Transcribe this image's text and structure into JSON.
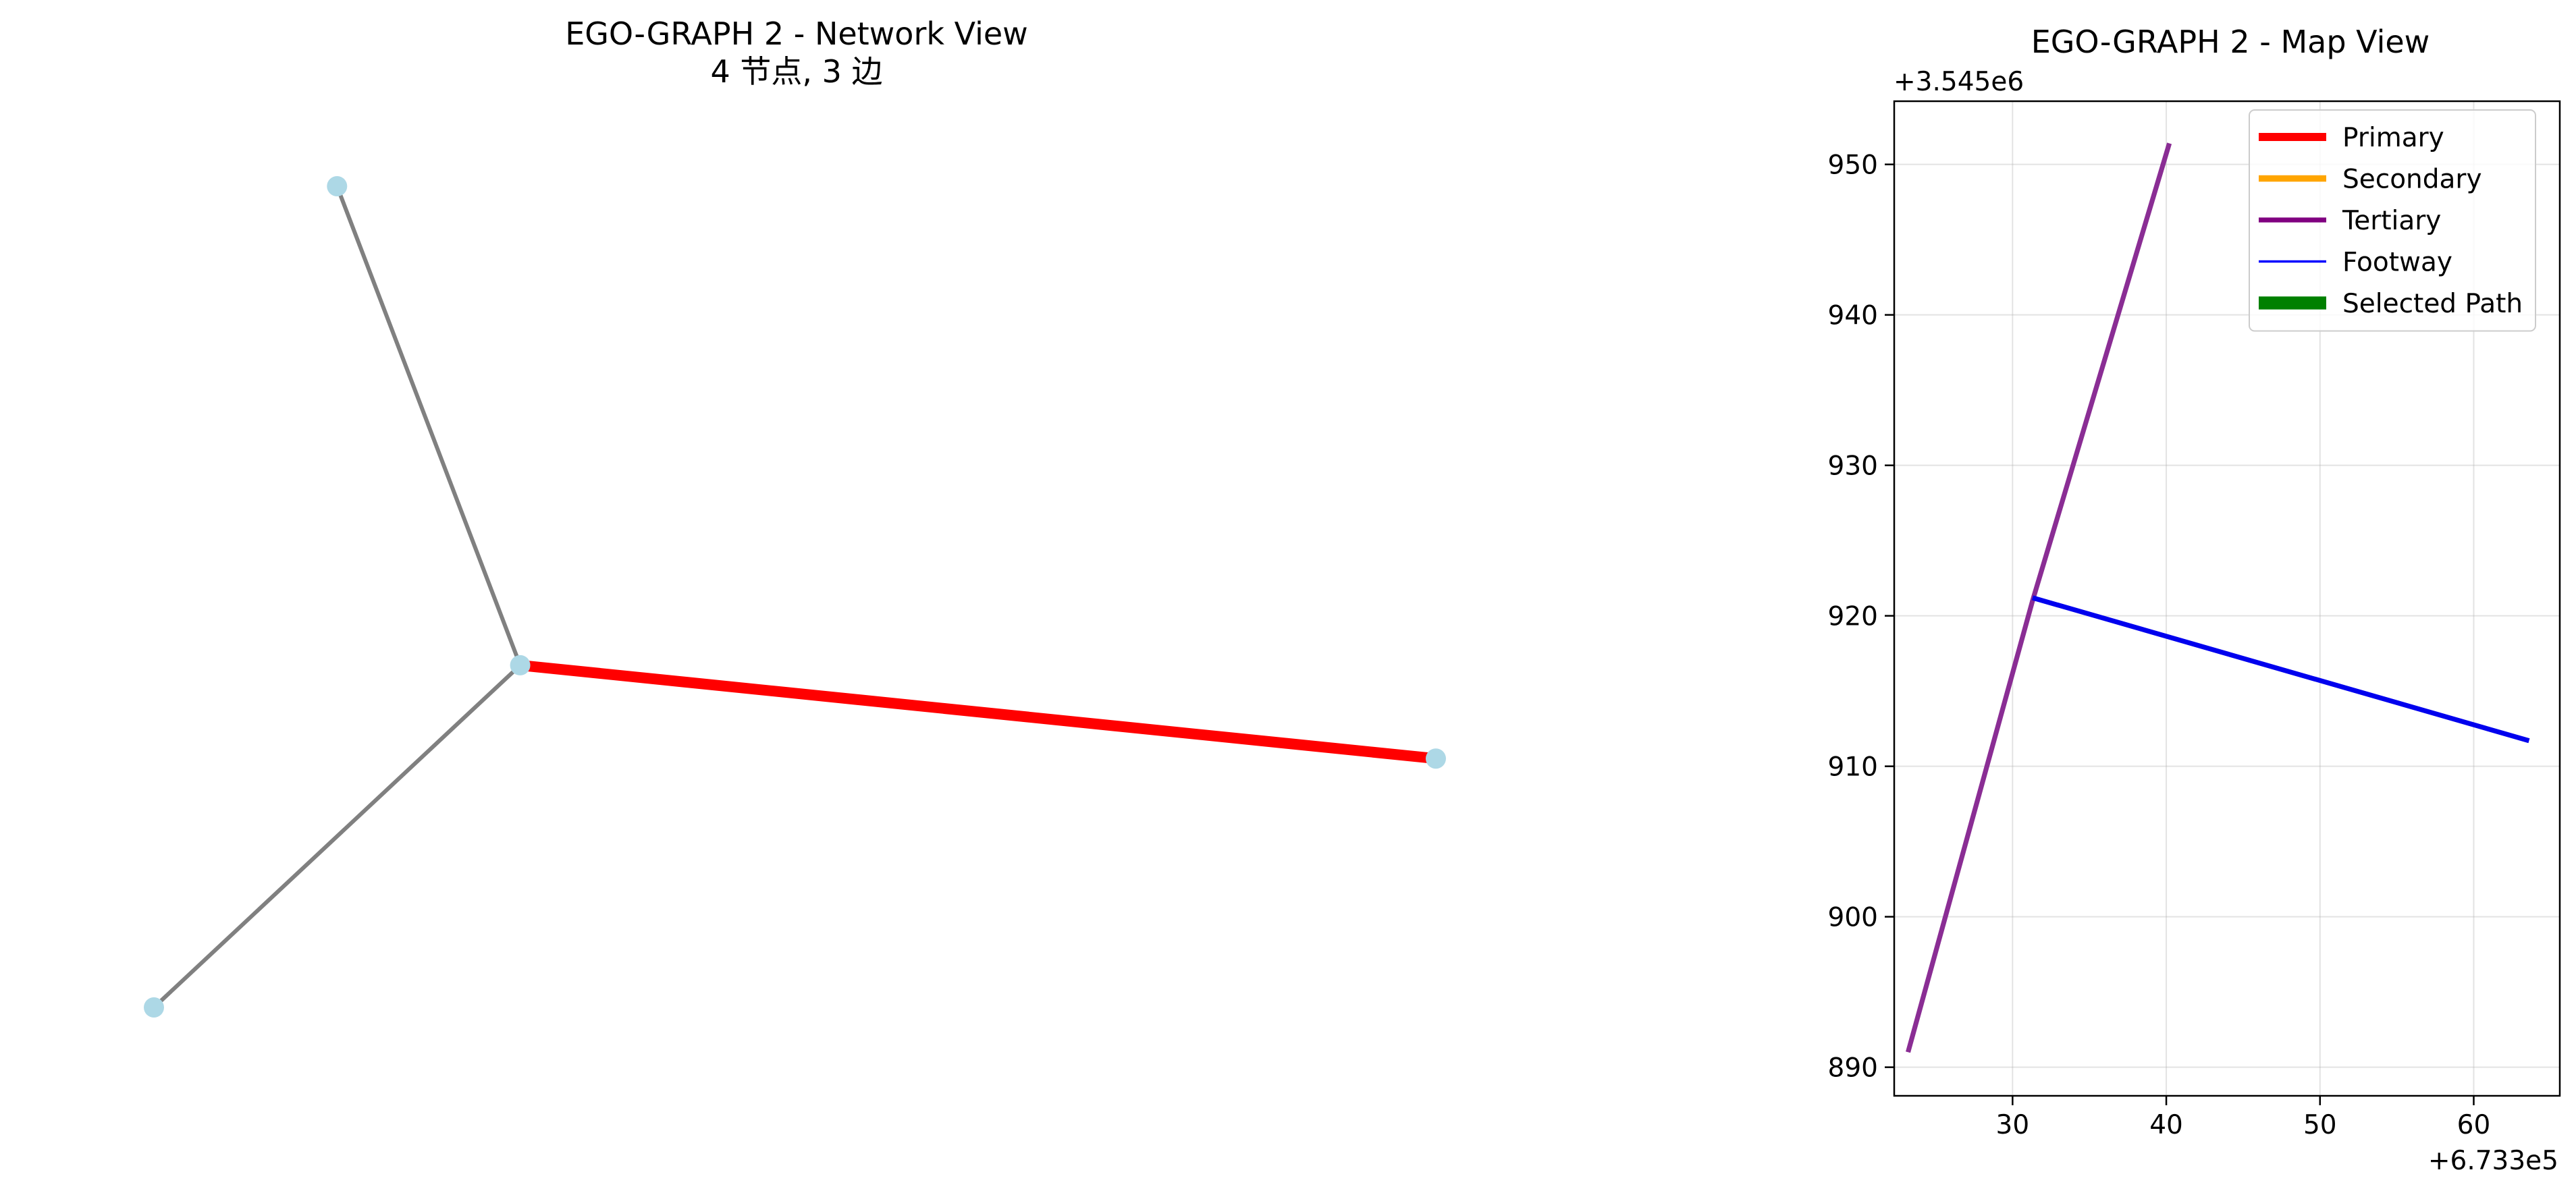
{
  "chart_data": [
    {
      "type": "network",
      "title": "EGO-GRAPH 2 - Network View",
      "subtitle": "4 节点, 3 边",
      "axes_visible": false,
      "nodes": [
        {
          "id": 0,
          "x": 674.1,
          "y": 1.87
        },
        {
          "id": 1,
          "x": 674.25,
          "y": 1.1
        },
        {
          "id": 2,
          "x": 675.0,
          "y": 0.95
        },
        {
          "id": 3,
          "x": 673.95,
          "y": 0.55
        }
      ],
      "edges": [
        {
          "source": 0,
          "target": 1,
          "color": "#808080",
          "style": "normal"
        },
        {
          "source": 1,
          "target": 3,
          "color": "#808080",
          "style": "normal"
        },
        {
          "source": 1,
          "target": 2,
          "color": "#ff0000",
          "style": "highlighted"
        }
      ],
      "node_color": "#add8e6"
    },
    {
      "type": "line",
      "title": "EGO-GRAPH 2 - Map View",
      "xlabel": "",
      "ylabel": "",
      "x_offset_label": "+6.733e5",
      "y_offset_label": "+3.545e6",
      "xlim": [
        22.3,
        65.6
      ],
      "ylim": [
        888.1,
        954.2
      ],
      "xticks": [
        30,
        40,
        50,
        60
      ],
      "yticks": [
        890,
        900,
        910,
        920,
        930,
        940,
        950
      ],
      "grid": true,
      "legend_position": "upper right",
      "legend": [
        {
          "label": "Primary",
          "color": "#ff0000",
          "width": 5
        },
        {
          "label": "Secondary",
          "color": "#ffa500",
          "width": 4
        },
        {
          "label": "Tertiary",
          "color": "#800080",
          "width": 3
        },
        {
          "label": "Footway",
          "color": "#0000ff",
          "width": 1.5
        },
        {
          "label": "Selected Path",
          "color": "#008000",
          "width": 8
        }
      ],
      "series": [
        {
          "color": "#8a2d94",
          "width": 3,
          "points": [
            [
              23.2,
              891.0
            ],
            [
              31.3,
              921.0
            ],
            [
              40.2,
              951.4
            ]
          ]
        },
        {
          "color": "#0000ee",
          "width": 3,
          "points": [
            [
              31.3,
              921.2
            ],
            [
              63.6,
              911.7
            ]
          ]
        }
      ]
    }
  ]
}
